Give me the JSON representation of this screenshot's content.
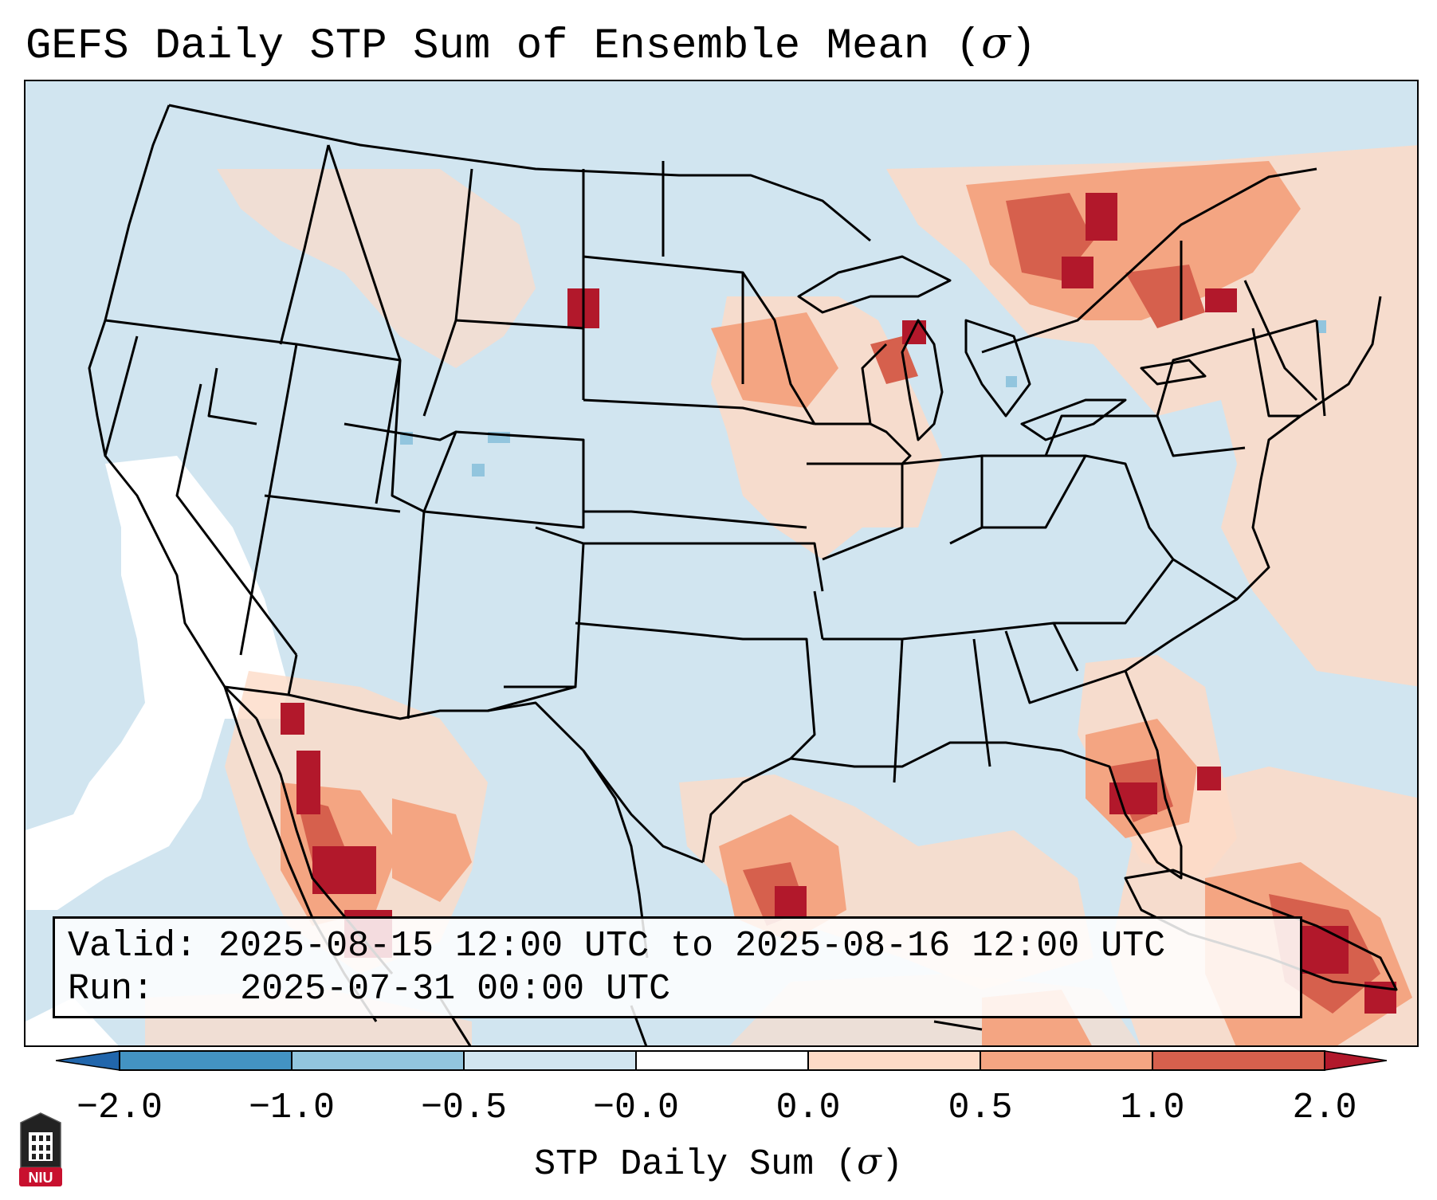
{
  "title": "GEFS Daily STP Sum of Ensemble Mean (",
  "title_symbol": "σ",
  "title_close": ")",
  "info": {
    "valid_label": "Valid:",
    "valid_value": "2025-08-15 12:00 UTC to 2025-08-16 12:00 UTC",
    "run_label": "Run:",
    "run_value": "2025-07-31 00:00 UTC"
  },
  "colorbar": {
    "ticks": [
      "−2.0",
      "−1.0",
      "−0.5",
      "−0.0",
      "0.0",
      "0.5",
      "1.0",
      "2.0"
    ],
    "label": "STP Daily Sum (",
    "label_symbol": "σ",
    "label_close": ")",
    "colors": [
      "#2166ac",
      "#4393c3",
      "#92c5de",
      "#d1e5f0",
      "#ffffff",
      "#fddbc7",
      "#f4a582",
      "#d6604d",
      "#b2182b"
    ]
  },
  "map_colors": {
    "ocean": "#d1e5f0",
    "white": "#ffffff",
    "light": "#fddbc7",
    "medium": "#f4a582",
    "strong": "#d6604d",
    "extreme": "#b2182b",
    "negative": "#92c5de"
  },
  "logo": {
    "text": "NIU",
    "color": "#c8102e"
  }
}
